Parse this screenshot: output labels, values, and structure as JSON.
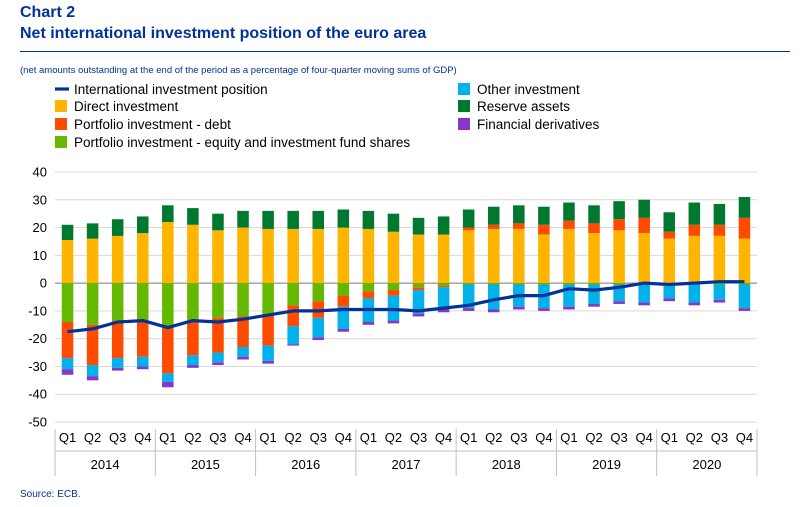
{
  "header": {
    "chart_number": "Chart 2",
    "title": "Net international investment position of the euro area",
    "subtitle": "(net amounts outstanding at the end of the period as a percentage of four-quarter moving sums of GDP)"
  },
  "footer": {
    "source": "Source: ECB."
  },
  "chart_data": {
    "type": "bar",
    "stacked": true,
    "title": "Net international investment position of the euro area",
    "subtitle": "(net amounts outstanding at the end of the period as a percentage of four-quarter moving sums of GDP)",
    "ylim": [
      -50,
      40
    ],
    "yticks": [
      40,
      30,
      20,
      10,
      0,
      -10,
      -20,
      -30,
      -40,
      -50
    ],
    "grid": true,
    "legend_position": "top",
    "categories": [
      "Q1",
      "Q2",
      "Q3",
      "Q4",
      "Q1",
      "Q2",
      "Q3",
      "Q4",
      "Q1",
      "Q2",
      "Q3",
      "Q4",
      "Q1",
      "Q2",
      "Q3",
      "Q4",
      "Q1",
      "Q2",
      "Q3",
      "Q4",
      "Q1",
      "Q2",
      "Q3",
      "Q4",
      "Q1",
      "Q2",
      "Q3",
      "Q4"
    ],
    "years": [
      "2014",
      "2015",
      "2016",
      "2017",
      "2018",
      "2019",
      "2020"
    ],
    "series": [
      {
        "name": "Direct investment",
        "kind": "bar",
        "color": "#FFB400",
        "values": [
          15.5,
          16.0,
          17.0,
          18.0,
          22.0,
          21.0,
          19.0,
          20.0,
          19.5,
          19.5,
          19.5,
          20.0,
          19.5,
          18.5,
          17.5,
          17.5,
          19.0,
          19.5,
          19.5,
          17.5,
          19.5,
          18.0,
          19.0,
          18.0,
          16.0,
          17.0,
          17.0,
          16.0
        ]
      },
      {
        "name": "Portfolio investment - equity and investment fund shares",
        "kind": "bar",
        "color": "#65B800",
        "values": [
          -14.0,
          -15.0,
          -13.5,
          -13.0,
          -16.0,
          -13.5,
          -12.5,
          -12.0,
          -11.5,
          -8.0,
          -6.5,
          -4.5,
          -3.0,
          -2.5,
          -1.5,
          -1.0,
          -0.5,
          -0.5,
          -0.5,
          -0.5,
          -0.5,
          -0.5,
          -0.5,
          -0.5,
          -0.5,
          -0.5,
          -0.5,
          -0.5
        ]
      },
      {
        "name": "Portfolio investment - debt",
        "kind": "bar",
        "color": "#FF4B00",
        "values": [
          -13.0,
          -14.5,
          -13.5,
          -13.5,
          -16.5,
          -12.5,
          -12.5,
          -11.0,
          -11.0,
          -7.5,
          -6.0,
          -4.0,
          -2.5,
          -2.0,
          -1.0,
          -0.5,
          1.0,
          1.5,
          2.0,
          3.5,
          3.0,
          3.5,
          4.0,
          5.5,
          2.5,
          4.0,
          4.0,
          7.5
        ]
      },
      {
        "name": "Other investment",
        "kind": "bar",
        "color": "#00B1EA",
        "values": [
          -4.0,
          -4.0,
          -3.5,
          -3.5,
          -3.0,
          -3.5,
          -3.5,
          -3.5,
          -5.5,
          -6.5,
          -7.0,
          -8.0,
          -8.5,
          -9.0,
          -8.5,
          -8.0,
          -8.5,
          -9.0,
          -8.0,
          -8.5,
          -8.0,
          -7.0,
          -6.0,
          -6.5,
          -5.0,
          -6.5,
          -5.5,
          -8.5
        ]
      },
      {
        "name": "Financial derivatives",
        "kind": "bar",
        "color": "#8139C6",
        "values": [
          -2.0,
          -1.5,
          -1.0,
          -1.0,
          -2.0,
          -1.0,
          -1.0,
          -1.0,
          -1.0,
          -0.5,
          -1.0,
          -1.0,
          -1.0,
          -1.0,
          -1.0,
          -1.0,
          -1.0,
          -1.0,
          -1.0,
          -1.0,
          -1.0,
          -1.0,
          -1.0,
          -1.0,
          -1.0,
          -1.0,
          -1.0,
          -1.0
        ]
      },
      {
        "name": "Reserve assets",
        "kind": "bar",
        "color": "#00782F",
        "values": [
          5.5,
          5.5,
          6.0,
          6.0,
          6.0,
          6.0,
          6.0,
          6.0,
          6.5,
          6.5,
          6.5,
          6.5,
          6.5,
          6.5,
          6.0,
          6.5,
          6.5,
          6.5,
          6.5,
          6.5,
          6.5,
          6.5,
          6.5,
          6.5,
          7.0,
          8.0,
          7.5,
          7.5
        ]
      },
      {
        "name": "International investment position",
        "kind": "line",
        "color": "#003299",
        "values": [
          -17.5,
          -16.5,
          -14.0,
          -13.5,
          -16.0,
          -13.5,
          -14.0,
          -13.0,
          -11.5,
          -10.0,
          -10.0,
          -9.5,
          -9.5,
          -9.5,
          -10.0,
          -9.0,
          -8.0,
          -6.0,
          -4.5,
          -4.5,
          -2.0,
          -2.5,
          -1.5,
          0.0,
          -0.5,
          0.0,
          0.5,
          0.5
        ]
      }
    ]
  }
}
